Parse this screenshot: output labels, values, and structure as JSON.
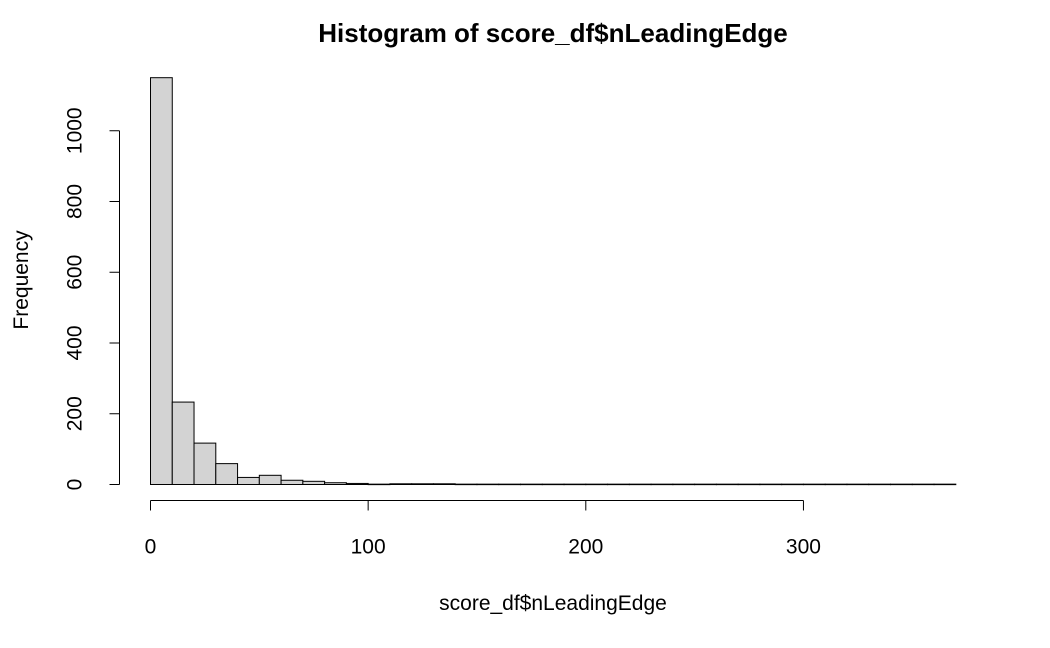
{
  "chart_data": {
    "type": "bar",
    "title": "Histogram of score_df$nLeadingEdge",
    "xlabel": "score_df$nLeadingEdge",
    "ylabel": "Frequency",
    "bin_width": 10,
    "bins": [
      {
        "start": 0,
        "end": 10,
        "count": 1150
      },
      {
        "start": 10,
        "end": 20,
        "count": 233
      },
      {
        "start": 20,
        "end": 30,
        "count": 117
      },
      {
        "start": 30,
        "end": 40,
        "count": 59
      },
      {
        "start": 40,
        "end": 50,
        "count": 20
      },
      {
        "start": 50,
        "end": 60,
        "count": 26
      },
      {
        "start": 60,
        "end": 70,
        "count": 12
      },
      {
        "start": 70,
        "end": 80,
        "count": 9
      },
      {
        "start": 80,
        "end": 90,
        "count": 5
      },
      {
        "start": 90,
        "end": 100,
        "count": 3
      },
      {
        "start": 100,
        "end": 110,
        "count": 1
      },
      {
        "start": 110,
        "end": 120,
        "count": 2
      },
      {
        "start": 120,
        "end": 130,
        "count": 2
      },
      {
        "start": 130,
        "end": 140,
        "count": 2
      },
      {
        "start": 140,
        "end": 150,
        "count": 1
      },
      {
        "start": 150,
        "end": 160,
        "count": 1
      },
      {
        "start": 160,
        "end": 170,
        "count": 1
      },
      {
        "start": 170,
        "end": 180,
        "count": 1
      },
      {
        "start": 180,
        "end": 190,
        "count": 1
      },
      {
        "start": 190,
        "end": 200,
        "count": 1
      },
      {
        "start": 200,
        "end": 210,
        "count": 1
      },
      {
        "start": 210,
        "end": 220,
        "count": 1
      },
      {
        "start": 220,
        "end": 230,
        "count": 1
      },
      {
        "start": 230,
        "end": 240,
        "count": 1
      },
      {
        "start": 240,
        "end": 250,
        "count": 1
      },
      {
        "start": 250,
        "end": 260,
        "count": 1
      },
      {
        "start": 260,
        "end": 270,
        "count": 1
      },
      {
        "start": 270,
        "end": 280,
        "count": 1
      },
      {
        "start": 280,
        "end": 290,
        "count": 1
      },
      {
        "start": 290,
        "end": 300,
        "count": 1
      },
      {
        "start": 300,
        "end": 310,
        "count": 1
      },
      {
        "start": 310,
        "end": 320,
        "count": 1
      },
      {
        "start": 320,
        "end": 330,
        "count": 1
      },
      {
        "start": 330,
        "end": 340,
        "count": 1
      },
      {
        "start": 340,
        "end": 350,
        "count": 1
      },
      {
        "start": 350,
        "end": 360,
        "count": 1
      },
      {
        "start": 360,
        "end": 370,
        "count": 1
      }
    ],
    "x_ticks": [
      0,
      100,
      200,
      300
    ],
    "x_tick_labels": [
      "0",
      "100",
      "200",
      "300"
    ],
    "y_ticks": [
      0,
      200,
      400,
      600,
      800,
      1000
    ],
    "y_tick_labels": [
      "0",
      "200",
      "400",
      "600",
      "800",
      "1000"
    ],
    "xlim": [
      0,
      370
    ],
    "ylim": [
      0,
      1150
    ],
    "grid": false,
    "colors": {
      "bar_fill": "#d3d3d3",
      "bar_stroke": "#000000"
    }
  }
}
